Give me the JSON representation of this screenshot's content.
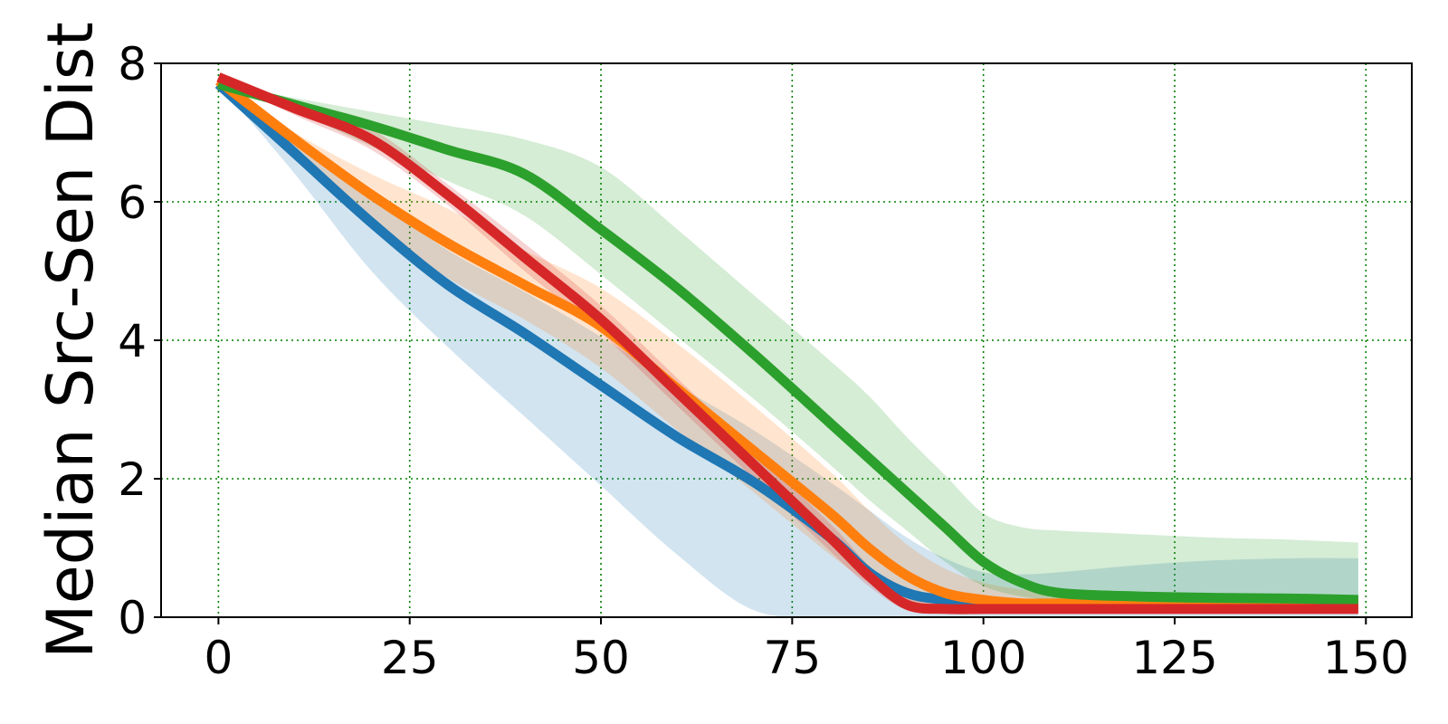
{
  "chart_data": {
    "type": "line",
    "xlabel": "",
    "ylabel": "Median Src-Sen Dist",
    "xlim": [
      -7.5,
      156
    ],
    "ylim": [
      0,
      8
    ],
    "xticks": [
      0,
      25,
      50,
      75,
      100,
      125,
      150
    ],
    "yticks": [
      0,
      2,
      4,
      6,
      8
    ],
    "grid": true,
    "x": [
      0,
      10,
      20,
      30,
      40,
      50,
      60,
      70,
      80,
      85,
      90,
      95,
      100,
      105,
      110,
      120,
      130,
      140,
      149
    ],
    "series": [
      {
        "color": "#1f77b4",
        "band_color": "#1f77b4",
        "values": [
          7.7,
          6.7,
          5.7,
          4.8,
          4.1,
          3.35,
          2.6,
          1.95,
          1.15,
          0.65,
          0.35,
          0.25,
          0.2,
          0.18,
          0.17,
          0.17,
          0.17,
          0.17,
          0.17
        ],
        "lower": [
          7.7,
          6.4,
          5.0,
          3.9,
          2.9,
          1.9,
          0.9,
          0.1,
          0,
          0,
          0,
          0,
          0,
          0,
          0,
          0,
          0,
          0,
          0
        ],
        "upper": [
          7.7,
          6.9,
          6.1,
          5.3,
          4.7,
          4.05,
          3.35,
          2.7,
          1.95,
          1.55,
          1.15,
          0.85,
          0.65,
          0.62,
          0.65,
          0.75,
          0.82,
          0.85,
          0.85
        ]
      },
      {
        "color": "#ff7f0e",
        "band_color": "#ff7f0e",
        "values": [
          7.75,
          6.9,
          6.1,
          5.4,
          4.8,
          4.2,
          3.3,
          2.4,
          1.5,
          1.0,
          0.6,
          0.35,
          0.25,
          0.2,
          0.2,
          0.2,
          0.2,
          0.2,
          0.2
        ],
        "lower": [
          7.75,
          6.7,
          5.7,
          4.9,
          4.3,
          3.6,
          2.7,
          1.8,
          0.9,
          0.5,
          0.2,
          0.1,
          0.1,
          0.1,
          0.1,
          0.1,
          0.1,
          0.1,
          0.1
        ],
        "upper": [
          7.75,
          7.0,
          6.4,
          5.9,
          5.3,
          4.75,
          3.95,
          3.05,
          2.1,
          1.55,
          1.05,
          0.7,
          0.5,
          0.4,
          0.35,
          0.35,
          0.32,
          0.3,
          0.3
        ]
      },
      {
        "color": "#2ca02c",
        "band_color": "#2ca02c",
        "values": [
          7.7,
          7.4,
          7.1,
          6.75,
          6.4,
          5.6,
          4.75,
          3.8,
          2.8,
          2.3,
          1.8,
          1.3,
          0.8,
          0.5,
          0.35,
          0.3,
          0.28,
          0.27,
          0.25
        ],
        "lower": [
          7.7,
          7.3,
          6.8,
          6.3,
          5.8,
          4.95,
          4.05,
          3.15,
          2.2,
          1.7,
          1.25,
          0.8,
          0.45,
          0.3,
          0.25,
          0.22,
          0.22,
          0.2,
          0.2
        ],
        "upper": [
          7.7,
          7.5,
          7.3,
          7.1,
          6.9,
          6.5,
          5.6,
          4.65,
          3.7,
          3.2,
          2.6,
          2.05,
          1.5,
          1.3,
          1.25,
          1.2,
          1.15,
          1.12,
          1.08
        ]
      },
      {
        "color": "#d62728",
        "band_color": "#d62728",
        "values": [
          7.8,
          7.35,
          6.9,
          6.1,
          5.2,
          4.3,
          3.25,
          2.2,
          1.15,
          0.6,
          0.18,
          0.12,
          0.12,
          0.12,
          0.12,
          0.12,
          0.12,
          0.12,
          0.12
        ],
        "lower": [
          7.8,
          7.25,
          6.75,
          5.95,
          5.0,
          4.1,
          3.05,
          2.0,
          0.95,
          0.45,
          0.1,
          0.05,
          0.05,
          0.05,
          0.05,
          0.05,
          0.05,
          0.05,
          0.05
        ],
        "upper": [
          7.8,
          7.45,
          7.05,
          6.25,
          5.4,
          4.5,
          3.45,
          2.4,
          1.35,
          0.75,
          0.3,
          0.2,
          0.2,
          0.2,
          0.2,
          0.2,
          0.2,
          0.2,
          0.2
        ]
      }
    ]
  }
}
